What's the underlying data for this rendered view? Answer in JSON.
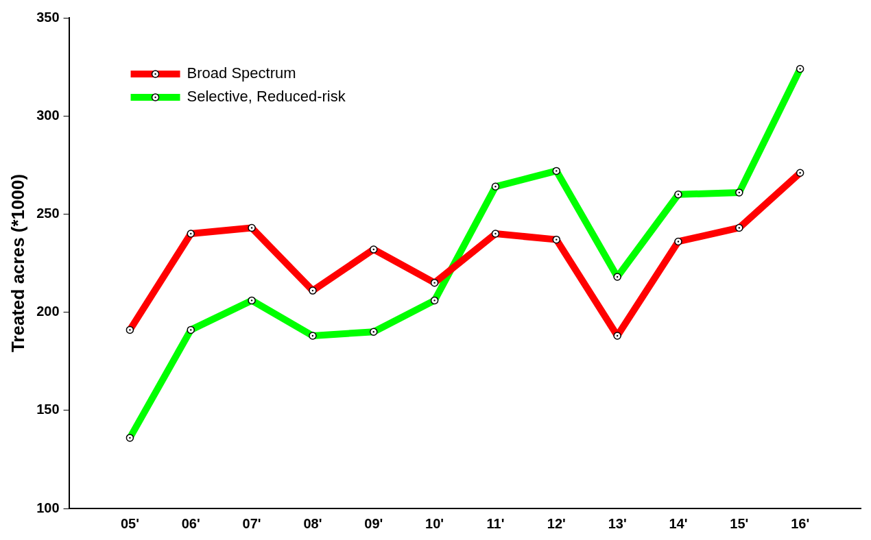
{
  "chart_data": {
    "type": "line",
    "ylabel": "Treated acres (*1000)",
    "categories": [
      "05'",
      "06'",
      "07'",
      "08'",
      "09'",
      "10'",
      "11'",
      "12'",
      "13'",
      "14'",
      "15'",
      "16'"
    ],
    "series": [
      {
        "name": "Broad Spectrum",
        "color": "#ff0000",
        "values": [
          191,
          240,
          243,
          211,
          232,
          215,
          240,
          237,
          188,
          236,
          243,
          271
        ]
      },
      {
        "name": "Selective, Reduced-risk",
        "color": "#00ff00",
        "values": [
          136,
          191,
          206,
          188,
          190,
          206,
          264,
          272,
          218,
          260,
          261,
          324
        ]
      }
    ],
    "ylim": [
      100,
      350
    ],
    "yticks": [
      100,
      150,
      200,
      250,
      300,
      350
    ],
    "grid": false,
    "legend": "top left",
    "marker": "circle",
    "line_style": "solid"
  }
}
